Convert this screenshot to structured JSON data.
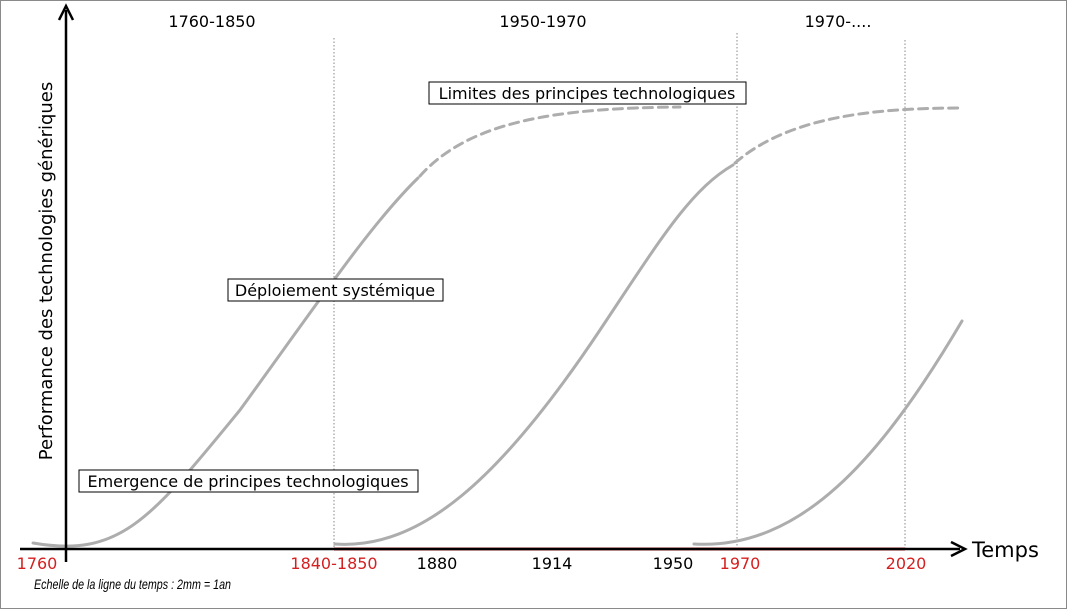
{
  "y_axis_label": "Performance des technologies génériques",
  "x_axis_label": "Temps",
  "periods": [
    "1760-1850",
    "1950-1970",
    "1970-...."
  ],
  "ticks": [
    {
      "label": "1760",
      "color": "#d42020"
    },
    {
      "label": "1840-1850",
      "color": "#d42020"
    },
    {
      "label": "1880",
      "color": "#000000"
    },
    {
      "label": "1914",
      "color": "#000000"
    },
    {
      "label": "1950",
      "color": "#000000"
    },
    {
      "label": "1970",
      "color": "#d42020"
    },
    {
      "label": "2020",
      "color": "#d42020"
    }
  ],
  "annotations": {
    "limits": "Limites des principes technologiques",
    "deployment": "Déploiement systémique",
    "emergence": "Emergence de principes technologiques"
  },
  "scale_note": "Echelle de la ligne du temps : 2mm = 1an",
  "colors": {
    "curve": "#adadad",
    "timeline_highlight": "#d42020",
    "axis": "#000000",
    "divider": "#888888"
  }
}
